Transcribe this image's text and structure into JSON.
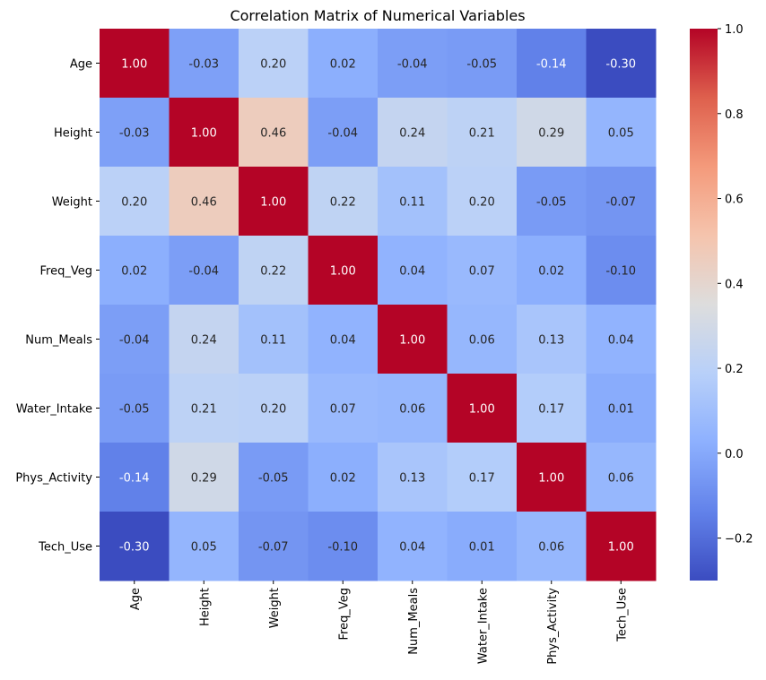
{
  "chart_data": {
    "type": "heatmap",
    "title": "Correlation Matrix of Numerical Variables",
    "rows": [
      "Age",
      "Height",
      "Weight",
      "Freq_Veg",
      "Num_Meals",
      "Water_Intake",
      "Phys_Activity",
      "Tech_Use"
    ],
    "columns": [
      "Age",
      "Height",
      "Weight",
      "Freq_Veg",
      "Num_Meals",
      "Water_Intake",
      "Phys_Activity",
      "Tech_Use"
    ],
    "values": [
      [
        1.0,
        -0.03,
        0.2,
        0.02,
        -0.04,
        -0.05,
        -0.14,
        -0.3
      ],
      [
        -0.03,
        1.0,
        0.46,
        -0.04,
        0.24,
        0.21,
        0.29,
        0.05
      ],
      [
        0.2,
        0.46,
        1.0,
        0.22,
        0.11,
        0.2,
        -0.05,
        -0.07
      ],
      [
        0.02,
        -0.04,
        0.22,
        1.0,
        0.04,
        0.07,
        0.02,
        -0.1
      ],
      [
        -0.04,
        0.24,
        0.11,
        0.04,
        1.0,
        0.06,
        0.13,
        0.04
      ],
      [
        -0.05,
        0.21,
        0.2,
        0.07,
        0.06,
        1.0,
        0.17,
        0.01
      ],
      [
        -0.14,
        0.29,
        -0.05,
        0.02,
        0.13,
        0.17,
        1.0,
        0.06
      ],
      [
        -0.3,
        0.05,
        -0.07,
        -0.1,
        0.04,
        0.01,
        0.06,
        1.0
      ]
    ],
    "value_format": "2 decimals",
    "colormap": "coolwarm",
    "color_range": [
      -0.3,
      1.0
    ],
    "colorbar_ticks": [
      -0.2,
      0.0,
      0.2,
      0.4,
      0.6,
      0.8,
      1.0
    ],
    "colorbar_tick_labels": [
      "−0.2",
      "0.0",
      "0.2",
      "0.4",
      "0.6",
      "0.8",
      "1.0"
    ],
    "colors": {
      "low": "#3b4cc0",
      "mid": "#dddddd",
      "high": "#b40426",
      "text_dark": "#262626",
      "text_light": "#ffffff"
    }
  }
}
